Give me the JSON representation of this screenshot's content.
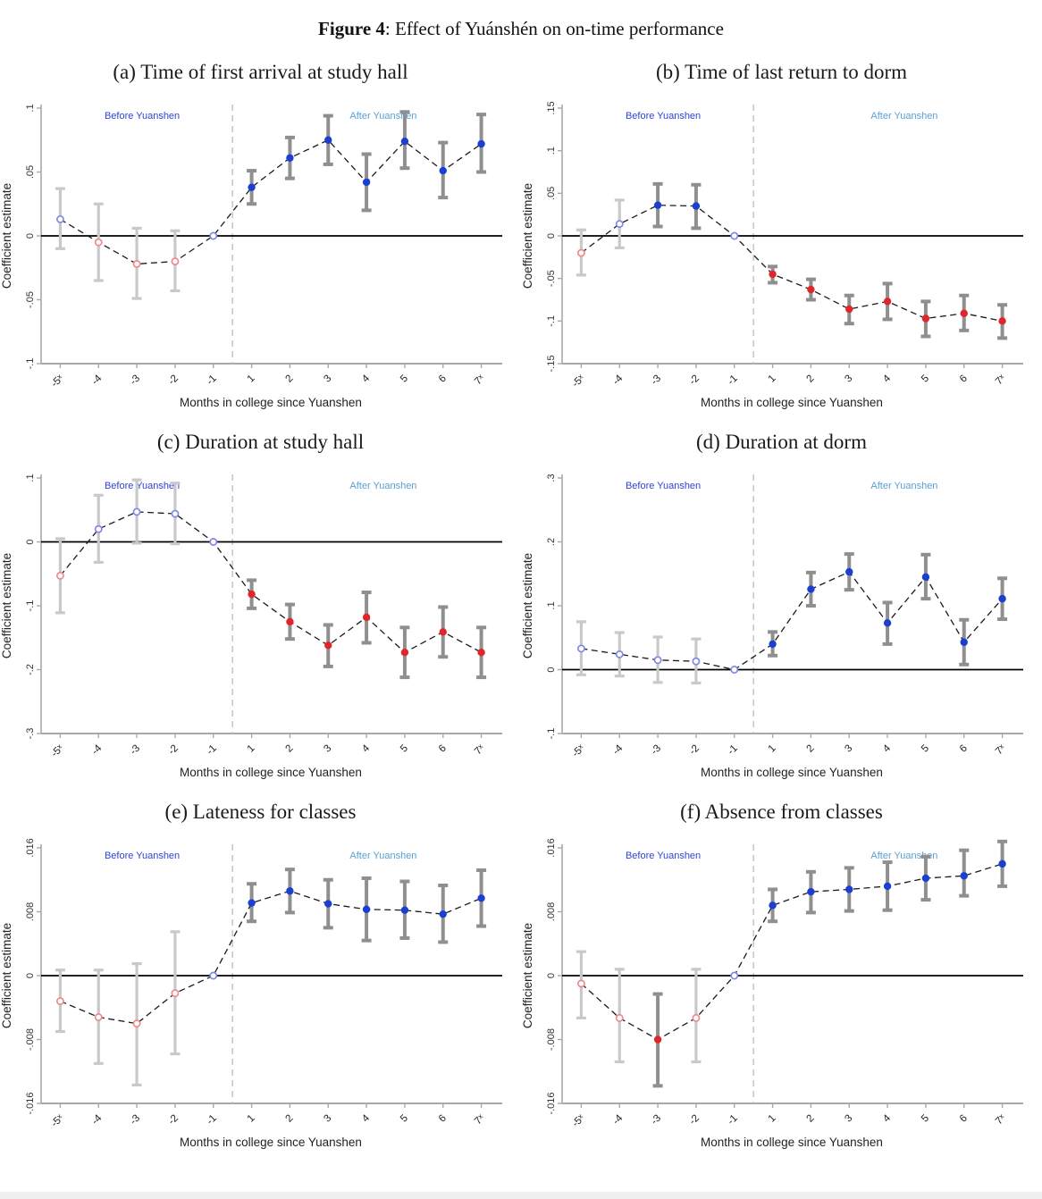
{
  "figure": {
    "label": "Figure 4",
    "caption": ": Effect of Yuánshén on on-time performance"
  },
  "axis_labels": {
    "x": "Months in college since Yuanshen",
    "y": "Coefficient estimate"
  },
  "region_labels": {
    "before": "Before Yuanshen",
    "after": "After Yuanshen"
  },
  "categories": [
    "-5ˣ",
    "-4",
    "-3",
    "-2",
    "-1",
    "1",
    "2",
    "3",
    "4",
    "5",
    "6",
    "7ˣ"
  ],
  "colors": {
    "before_label": "#2e43d6",
    "after_label": "#58a0d6",
    "marker_blue": "#1a3fd1",
    "marker_red": "#e0262b",
    "marker_open_blue": "#8089e6",
    "marker_open_red": "#f0898d",
    "ci_dark": "#8f8f8f",
    "ci_light": "#c9c9c9",
    "series_line": "#1a1a1a",
    "zero_line": "#000000",
    "divider": "#b4c6cc",
    "axis": "#a8a8a8",
    "tick_text": "#333333"
  },
  "chart_data": [
    {
      "type": "line",
      "id": "a",
      "title": "(a) Time of first arrival at study hall",
      "ylim": [
        -0.1,
        0.1
      ],
      "yticks": [
        {
          "value": 0.1,
          "label": ".1"
        },
        {
          "value": 0.05,
          "label": ".05"
        },
        {
          "value": 0,
          "label": "0"
        },
        {
          "value": -0.05,
          "label": "-.05"
        },
        {
          "value": -0.1,
          "label": "-.1"
        }
      ],
      "points": [
        {
          "x": "-5ˣ",
          "est": 0.013,
          "lo": -0.01,
          "hi": 0.037,
          "marker": "openBlue",
          "ci": "light"
        },
        {
          "x": "-4",
          "est": -0.005,
          "lo": -0.035,
          "hi": 0.025,
          "marker": "openRed",
          "ci": "light"
        },
        {
          "x": "-3",
          "est": -0.022,
          "lo": -0.049,
          "hi": 0.006,
          "marker": "openRed",
          "ci": "light"
        },
        {
          "x": "-2",
          "est": -0.02,
          "lo": -0.043,
          "hi": 0.004,
          "marker": "openRed",
          "ci": "light"
        },
        {
          "x": "-1",
          "est": 0,
          "lo": null,
          "hi": null,
          "marker": "openBlue",
          "ci": "none"
        },
        {
          "x": "1",
          "est": 0.038,
          "lo": 0.025,
          "hi": 0.051,
          "marker": "fillBlue",
          "ci": "dark"
        },
        {
          "x": "2",
          "est": 0.061,
          "lo": 0.045,
          "hi": 0.077,
          "marker": "fillBlue",
          "ci": "dark"
        },
        {
          "x": "3",
          "est": 0.075,
          "lo": 0.056,
          "hi": 0.094,
          "marker": "fillBlue",
          "ci": "dark"
        },
        {
          "x": "4",
          "est": 0.042,
          "lo": 0.02,
          "hi": 0.064,
          "marker": "fillBlue",
          "ci": "dark"
        },
        {
          "x": "5",
          "est": 0.074,
          "lo": 0.053,
          "hi": 0.097,
          "marker": "fillBlue",
          "ci": "dark"
        },
        {
          "x": "6",
          "est": 0.051,
          "lo": 0.03,
          "hi": 0.073,
          "marker": "fillBlue",
          "ci": "dark"
        },
        {
          "x": "7ˣ",
          "est": 0.072,
          "lo": 0.05,
          "hi": 0.095,
          "marker": "fillBlue",
          "ci": "dark"
        }
      ]
    },
    {
      "type": "line",
      "id": "b",
      "title": "(b) Time of last return to dorm",
      "ylim": [
        -0.15,
        0.15
      ],
      "yticks": [
        {
          "value": 0.15,
          "label": ".15"
        },
        {
          "value": 0.1,
          "label": ".1"
        },
        {
          "value": 0.05,
          "label": ".05"
        },
        {
          "value": 0,
          "label": "0"
        },
        {
          "value": -0.05,
          "label": "-.05"
        },
        {
          "value": -0.1,
          "label": "-.1"
        },
        {
          "value": -0.15,
          "label": "-.15"
        }
      ],
      "points": [
        {
          "x": "-5ˣ",
          "est": -0.02,
          "lo": -0.046,
          "hi": 0.007,
          "marker": "openRed",
          "ci": "light"
        },
        {
          "x": "-4",
          "est": 0.014,
          "lo": -0.014,
          "hi": 0.042,
          "marker": "openBlue",
          "ci": "light"
        },
        {
          "x": "-3",
          "est": 0.036,
          "lo": 0.011,
          "hi": 0.061,
          "marker": "fillBlue",
          "ci": "dark"
        },
        {
          "x": "-2",
          "est": 0.035,
          "lo": 0.009,
          "hi": 0.06,
          "marker": "fillBlue",
          "ci": "dark"
        },
        {
          "x": "-1",
          "est": 0,
          "lo": null,
          "hi": null,
          "marker": "openBlue",
          "ci": "none"
        },
        {
          "x": "1",
          "est": -0.045,
          "lo": -0.055,
          "hi": -0.036,
          "marker": "fillRed",
          "ci": "dark"
        },
        {
          "x": "2",
          "est": -0.063,
          "lo": -0.075,
          "hi": -0.051,
          "marker": "fillRed",
          "ci": "dark"
        },
        {
          "x": "3",
          "est": -0.086,
          "lo": -0.103,
          "hi": -0.07,
          "marker": "fillRed",
          "ci": "dark"
        },
        {
          "x": "4",
          "est": -0.077,
          "lo": -0.098,
          "hi": -0.056,
          "marker": "fillRed",
          "ci": "dark"
        },
        {
          "x": "5",
          "est": -0.097,
          "lo": -0.118,
          "hi": -0.077,
          "marker": "fillRed",
          "ci": "dark"
        },
        {
          "x": "6",
          "est": -0.091,
          "lo": -0.111,
          "hi": -0.07,
          "marker": "fillRed",
          "ci": "dark"
        },
        {
          "x": "7ˣ",
          "est": -0.1,
          "lo": -0.12,
          "hi": -0.081,
          "marker": "fillRed",
          "ci": "dark"
        }
      ]
    },
    {
      "type": "line",
      "id": "c",
      "title": "(c) Duration at study hall",
      "ylim": [
        -0.3,
        0.1
      ],
      "yticks": [
        {
          "value": 0.1,
          "label": ".1"
        },
        {
          "value": 0,
          "label": "0"
        },
        {
          "value": -0.1,
          "label": "-.1"
        },
        {
          "value": -0.2,
          "label": "-.2"
        },
        {
          "value": -0.3,
          "label": "-.3"
        }
      ],
      "points": [
        {
          "x": "-5ˣ",
          "est": -0.053,
          "lo": -0.111,
          "hi": 0.005,
          "marker": "openRed",
          "ci": "light"
        },
        {
          "x": "-4",
          "est": 0.02,
          "lo": -0.032,
          "hi": 0.073,
          "marker": "openBlue",
          "ci": "light"
        },
        {
          "x": "-3",
          "est": 0.047,
          "lo": -0.002,
          "hi": 0.097,
          "marker": "openBlue",
          "ci": "light"
        },
        {
          "x": "-2",
          "est": 0.044,
          "lo": -0.003,
          "hi": 0.092,
          "marker": "openBlue",
          "ci": "light"
        },
        {
          "x": "-1",
          "est": 0,
          "lo": null,
          "hi": null,
          "marker": "openBlue",
          "ci": "none"
        },
        {
          "x": "1",
          "est": -0.082,
          "lo": -0.104,
          "hi": -0.06,
          "marker": "fillRed",
          "ci": "dark"
        },
        {
          "x": "2",
          "est": -0.125,
          "lo": -0.152,
          "hi": -0.098,
          "marker": "fillRed",
          "ci": "dark"
        },
        {
          "x": "3",
          "est": -0.162,
          "lo": -0.195,
          "hi": -0.13,
          "marker": "fillRed",
          "ci": "dark"
        },
        {
          "x": "4",
          "est": -0.118,
          "lo": -0.158,
          "hi": -0.079,
          "marker": "fillRed",
          "ci": "dark"
        },
        {
          "x": "5",
          "est": -0.173,
          "lo": -0.212,
          "hi": -0.134,
          "marker": "fillRed",
          "ci": "dark"
        },
        {
          "x": "6",
          "est": -0.141,
          "lo": -0.18,
          "hi": -0.102,
          "marker": "fillRed",
          "ci": "dark"
        },
        {
          "x": "7ˣ",
          "est": -0.173,
          "lo": -0.212,
          "hi": -0.134,
          "marker": "fillRed",
          "ci": "dark"
        }
      ]
    },
    {
      "type": "line",
      "id": "d",
      "title": "(d) Duration at dorm",
      "ylim": [
        -0.1,
        0.3
      ],
      "yticks": [
        {
          "value": 0.3,
          "label": ".3"
        },
        {
          "value": 0.2,
          "label": ".2"
        },
        {
          "value": 0.1,
          "label": ".1"
        },
        {
          "value": 0,
          "label": "0"
        },
        {
          "value": -0.1,
          "label": "-.1"
        }
      ],
      "points": [
        {
          "x": "-5ˣ",
          "est": 0.033,
          "lo": -0.008,
          "hi": 0.075,
          "marker": "openBlue",
          "ci": "light"
        },
        {
          "x": "-4",
          "est": 0.024,
          "lo": -0.01,
          "hi": 0.058,
          "marker": "openBlue",
          "ci": "light"
        },
        {
          "x": "-3",
          "est": 0.015,
          "lo": -0.02,
          "hi": 0.051,
          "marker": "openBlue",
          "ci": "light"
        },
        {
          "x": "-2",
          "est": 0.013,
          "lo": -0.021,
          "hi": 0.048,
          "marker": "openBlue",
          "ci": "light"
        },
        {
          "x": "-1",
          "est": 0,
          "lo": null,
          "hi": null,
          "marker": "openBlue",
          "ci": "none"
        },
        {
          "x": "1",
          "est": 0.04,
          "lo": 0.022,
          "hi": 0.059,
          "marker": "fillBlue",
          "ci": "dark"
        },
        {
          "x": "2",
          "est": 0.126,
          "lo": 0.1,
          "hi": 0.152,
          "marker": "fillBlue",
          "ci": "dark"
        },
        {
          "x": "3",
          "est": 0.153,
          "lo": 0.125,
          "hi": 0.181,
          "marker": "fillBlue",
          "ci": "dark"
        },
        {
          "x": "4",
          "est": 0.073,
          "lo": 0.04,
          "hi": 0.105,
          "marker": "fillBlue",
          "ci": "dark"
        },
        {
          "x": "5",
          "est": 0.145,
          "lo": 0.111,
          "hi": 0.18,
          "marker": "fillBlue",
          "ci": "dark"
        },
        {
          "x": "6",
          "est": 0.043,
          "lo": 0.008,
          "hi": 0.078,
          "marker": "fillBlue",
          "ci": "dark"
        },
        {
          "x": "7ˣ",
          "est": 0.111,
          "lo": 0.079,
          "hi": 0.143,
          "marker": "fillBlue",
          "ci": "dark"
        }
      ]
    },
    {
      "type": "line",
      "id": "e",
      "title": "(e) Lateness for classes",
      "ylim": [
        -0.016,
        0.016
      ],
      "yticks": [
        {
          "value": 0.016,
          "label": ".016"
        },
        {
          "value": 0.008,
          "label": ".008"
        },
        {
          "value": 0,
          "label": "0"
        },
        {
          "value": -0.008,
          "label": "-.008"
        },
        {
          "value": -0.016,
          "label": "-.016"
        }
      ],
      "points": [
        {
          "x": "-5ˣ",
          "est": -0.0032,
          "lo": -0.007,
          "hi": 0.0007,
          "marker": "openRed",
          "ci": "light"
        },
        {
          "x": "-4",
          "est": -0.0052,
          "lo": -0.011,
          "hi": 0.0007,
          "marker": "openRed",
          "ci": "light"
        },
        {
          "x": "-3",
          "est": -0.006,
          "lo": -0.0137,
          "hi": 0.0015,
          "marker": "openRed",
          "ci": "light"
        },
        {
          "x": "-2",
          "est": -0.0022,
          "lo": -0.0098,
          "hi": 0.0055,
          "marker": "openRed",
          "ci": "light"
        },
        {
          "x": "-1",
          "est": 0,
          "lo": null,
          "hi": null,
          "marker": "openBlue",
          "ci": "none"
        },
        {
          "x": "1",
          "est": 0.0091,
          "lo": 0.0068,
          "hi": 0.0115,
          "marker": "fillBlue",
          "ci": "dark"
        },
        {
          "x": "2",
          "est": 0.0106,
          "lo": 0.0079,
          "hi": 0.0133,
          "marker": "fillBlue",
          "ci": "dark"
        },
        {
          "x": "3",
          "est": 0.009,
          "lo": 0.006,
          "hi": 0.012,
          "marker": "fillBlue",
          "ci": "dark"
        },
        {
          "x": "4",
          "est": 0.0083,
          "lo": 0.0044,
          "hi": 0.0122,
          "marker": "fillBlue",
          "ci": "dark"
        },
        {
          "x": "5",
          "est": 0.0082,
          "lo": 0.0047,
          "hi": 0.0118,
          "marker": "fillBlue",
          "ci": "dark"
        },
        {
          "x": "6",
          "est": 0.0077,
          "lo": 0.0042,
          "hi": 0.0113,
          "marker": "fillBlue",
          "ci": "dark"
        },
        {
          "x": "7ˣ",
          "est": 0.0097,
          "lo": 0.0062,
          "hi": 0.0132,
          "marker": "fillBlue",
          "ci": "dark"
        }
      ]
    },
    {
      "type": "line",
      "id": "f",
      "title": "(f) Absence from classes",
      "ylim": [
        -0.016,
        0.016
      ],
      "yticks": [
        {
          "value": 0.016,
          "label": ".016"
        },
        {
          "value": 0.008,
          "label": ".008"
        },
        {
          "value": 0,
          "label": "0"
        },
        {
          "value": -0.008,
          "label": "-.008"
        },
        {
          "value": -0.016,
          "label": "-.016"
        }
      ],
      "points": [
        {
          "x": "-5ˣ",
          "est": -0.001,
          "lo": -0.0053,
          "hi": 0.003,
          "marker": "openRed",
          "ci": "light"
        },
        {
          "x": "-4",
          "est": -0.0053,
          "lo": -0.0108,
          "hi": 0.0008,
          "marker": "openRed",
          "ci": "light"
        },
        {
          "x": "-3",
          "est": -0.008,
          "lo": -0.0138,
          "hi": -0.0023,
          "marker": "fillRed",
          "ci": "dark"
        },
        {
          "x": "-2",
          "est": -0.0053,
          "lo": -0.0108,
          "hi": 0.0008,
          "marker": "openRed",
          "ci": "light"
        },
        {
          "x": "-1",
          "est": 0,
          "lo": null,
          "hi": null,
          "marker": "openBlue",
          "ci": "none"
        },
        {
          "x": "1",
          "est": 0.0088,
          "lo": 0.0068,
          "hi": 0.0108,
          "marker": "fillBlue",
          "ci": "dark"
        },
        {
          "x": "2",
          "est": 0.0105,
          "lo": 0.0079,
          "hi": 0.013,
          "marker": "fillBlue",
          "ci": "dark"
        },
        {
          "x": "3",
          "est": 0.0108,
          "lo": 0.0081,
          "hi": 0.0135,
          "marker": "fillBlue",
          "ci": "dark"
        },
        {
          "x": "4",
          "est": 0.0112,
          "lo": 0.0082,
          "hi": 0.0142,
          "marker": "fillBlue",
          "ci": "dark"
        },
        {
          "x": "5",
          "est": 0.0122,
          "lo": 0.0095,
          "hi": 0.0149,
          "marker": "fillBlue",
          "ci": "dark"
        },
        {
          "x": "6",
          "est": 0.0125,
          "lo": 0.01,
          "hi": 0.0157,
          "marker": "fillBlue",
          "ci": "dark"
        },
        {
          "x": "7ˣ",
          "est": 0.014,
          "lo": 0.0112,
          "hi": 0.0168,
          "marker": "fillBlue",
          "ci": "dark"
        }
      ]
    }
  ]
}
